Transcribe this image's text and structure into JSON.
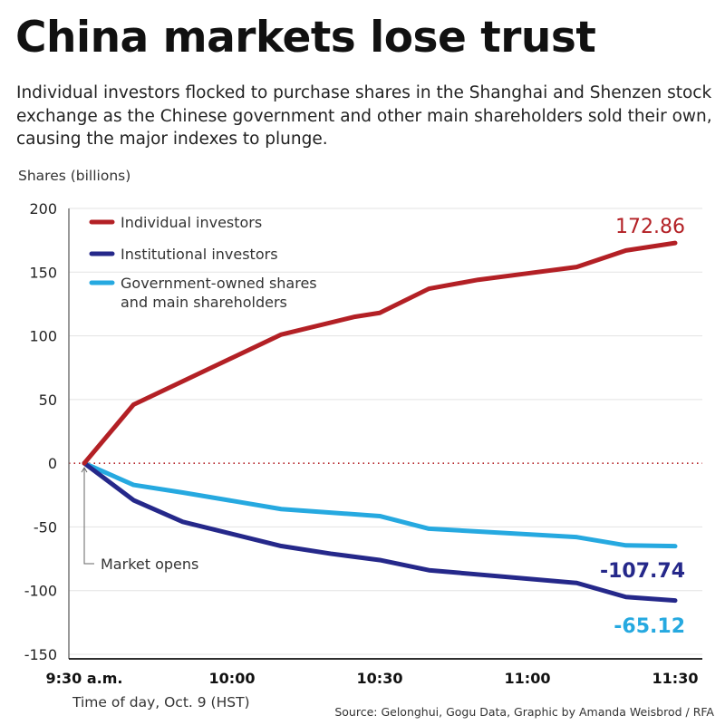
{
  "title": "China markets lose trust",
  "subtitle": "Individual investors flocked to purchase shares in the Shanghai and Shenzen stock exchange as the Chinese government and other main shareholders sold their own, causing the major indexes to plunge.",
  "source": "Source: Gelonghui, Gogu Data, Graphic by Amanda Weisbrod / RFA",
  "chart_data": {
    "type": "line",
    "ylabel": "Shares (billions)",
    "xlabel": "Time of day, Oct. 9 (HST)",
    "ylim": [
      -150,
      200
    ],
    "yticks": [
      200,
      150,
      100,
      50,
      0,
      -50,
      -100,
      -150
    ],
    "xlim": [
      "9:30",
      "11:30"
    ],
    "xticks": [
      "9:30 a.m.",
      "10:00",
      "10:30",
      "11:00",
      "11:30"
    ],
    "grid": true,
    "legend": "top-left",
    "annotation": "Market opens",
    "series": [
      {
        "name": "Individual investors",
        "color": "#b32025",
        "end_label": "172.86",
        "x": [
          "9:30",
          "9:40",
          "10:10",
          "10:25",
          "10:30",
          "10:40",
          "10:50",
          "11:00",
          "11:10",
          "11:20",
          "11:30"
        ],
        "y": [
          0,
          46,
          101,
          115,
          118,
          137,
          144,
          149,
          154,
          167,
          172.86
        ]
      },
      {
        "name": "Institutional investors",
        "color": "#25288a",
        "end_label": "-107.74",
        "x": [
          "9:30",
          "9:40",
          "9:50",
          "10:10",
          "10:20",
          "10:30",
          "10:40",
          "11:10",
          "11:20",
          "11:30"
        ],
        "y": [
          0,
          -29,
          -46,
          -65,
          -71,
          -76,
          -84,
          -94,
          -105,
          -107.74
        ]
      },
      {
        "name": "Government-owned shares and main shareholders",
        "name_lines": [
          "Government-owned shares",
          "and main shareholders"
        ],
        "color": "#26a9e0",
        "end_label": "-65.12",
        "x": [
          "9:30",
          "9:40",
          "9:50",
          "10:10",
          "10:30",
          "10:40",
          "11:10",
          "11:20",
          "11:30"
        ],
        "y": [
          0,
          -17,
          -23,
          -36,
          -41.5,
          -51.4,
          -58,
          -64.5,
          -65.12
        ]
      }
    ]
  }
}
